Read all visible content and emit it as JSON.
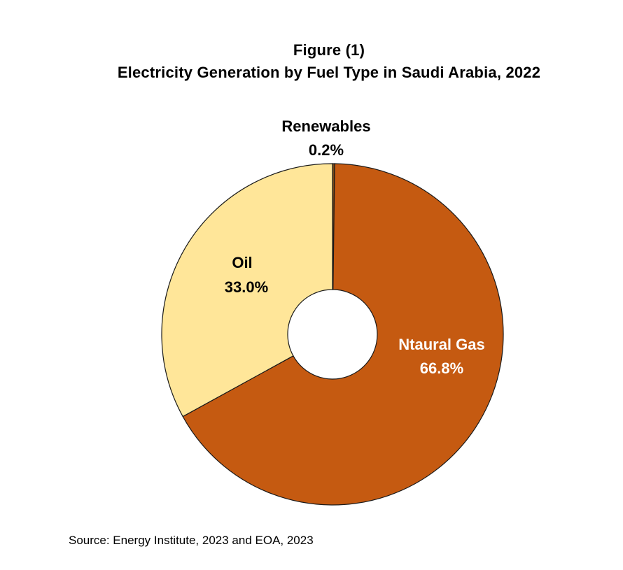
{
  "figure_label": "Figure (1)",
  "title": "Electricity Generation by Fuel Type in Saudi Arabia, 2022",
  "source": "Source: Energy Institute, 2023 and EOA, 2023",
  "chart_data": {
    "type": "pie",
    "style": "donut",
    "title": "Electricity Generation by Fuel Type in Saudi Arabia, 2022",
    "slices": [
      {
        "name": "Renewables",
        "value": 0.2,
        "label": "0.2%",
        "color": "#7a4a16",
        "label_color": "#000000",
        "label_position": "outside-top"
      },
      {
        "name": "Ntaural Gas",
        "value": 66.8,
        "label": "66.8%",
        "color": "#c55a11",
        "label_color": "#ffffff",
        "label_position": "inside"
      },
      {
        "name": "Oil",
        "value": 33.0,
        "label": "33.0%",
        "color": "#ffe699",
        "label_color": "#000000",
        "label_position": "inside"
      }
    ],
    "start_angle": "12 o'clock",
    "direction": "clockwise",
    "stroke_color": "#1a1a1a",
    "legend": "none"
  }
}
